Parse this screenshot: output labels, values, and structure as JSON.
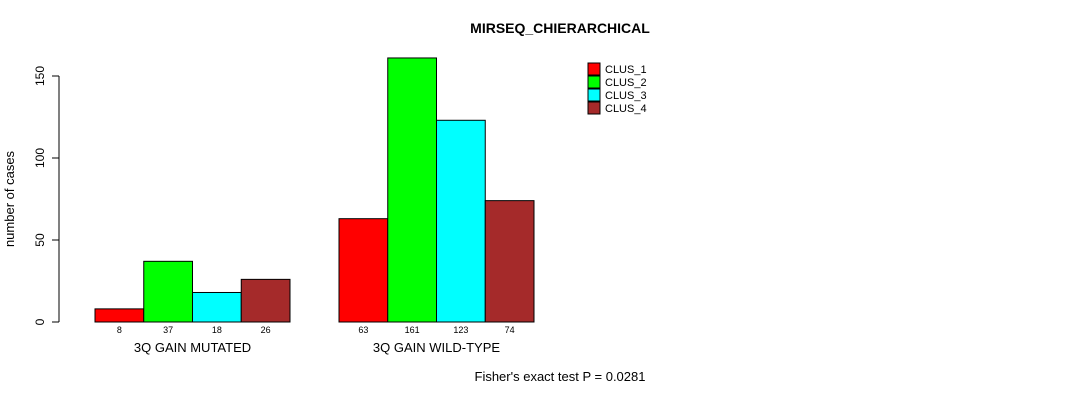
{
  "chart_data": {
    "type": "bar",
    "title": "MIRSEQ_CHIERARCHICAL",
    "xlabel": "",
    "ylabel": "number of cases",
    "ylim": [
      0,
      150
    ],
    "yticks": [
      0,
      50,
      100,
      150
    ],
    "grid": false,
    "legend_position": "top-right",
    "categories": [
      "3Q GAIN MUTATED",
      "3Q GAIN WILD-TYPE"
    ],
    "series": [
      {
        "name": "CLUS_1",
        "color": "#FF0000",
        "values": [
          8,
          63
        ]
      },
      {
        "name": "CLUS_2",
        "color": "#00FF00",
        "values": [
          37,
          161
        ]
      },
      {
        "name": "CLUS_3",
        "color": "#00FFFF",
        "values": [
          18,
          123
        ]
      },
      {
        "name": "CLUS_4",
        "color": "#A52A2A",
        "values": [
          26,
          74
        ]
      }
    ],
    "bar_labels": [
      [
        "8",
        "37",
        "18",
        "26"
      ],
      [
        "63",
        "161",
        "123",
        "74"
      ]
    ],
    "annotation": "Fisher's exact test P = 0.0281",
    "axis_color": "#000000",
    "bar_border_color": "#000000"
  }
}
